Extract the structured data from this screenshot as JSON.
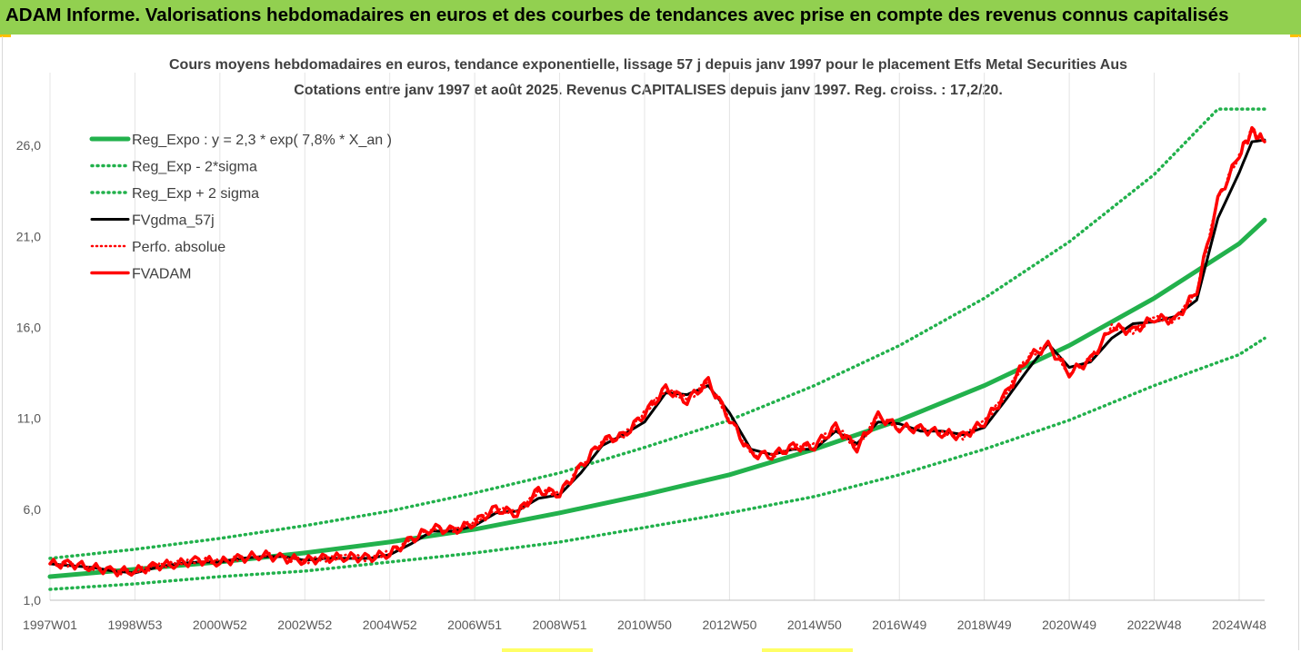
{
  "banner": {
    "title": "ADAM Informe. Valorisations hebdomadaires en euros et des courbes de tendances avec prise en compte des revenus connus capitalisés"
  },
  "colors": {
    "banner": "#92d050",
    "trend": "#22b14c",
    "smooth": "#000000",
    "absolute": "#ff0000",
    "adam": "#ff0000",
    "grid": "#e4e4e4"
  },
  "chart_data": {
    "type": "line",
    "title": "Cours moyens hebdomadaires en euros, tendance exponentielle, lissage 57 j depuis janv 1997 pour le placement Etfs Metal Securities Aus",
    "subtitle": "Cotations entre janv 1997 et août 2025. Revenus CAPITALISES depuis janv 1997. Reg. croiss. : 17,2/20.",
    "xlabel": "",
    "ylabel": "",
    "ylim": [
      1.0,
      30.0
    ],
    "x_range": [
      1997.0,
      2025.6
    ],
    "grid": true,
    "legend_position": "top-left",
    "x_ticks": [
      {
        "label": "1997W01",
        "year": 1997.0
      },
      {
        "label": "1998W53",
        "year": 1999.0
      },
      {
        "label": "2000W52",
        "year": 2001.0
      },
      {
        "label": "2002W52",
        "year": 2003.0
      },
      {
        "label": "2004W52",
        "year": 2005.0
      },
      {
        "label": "2006W51",
        "year": 2007.0
      },
      {
        "label": "2008W51",
        "year": 2009.0
      },
      {
        "label": "2010W50",
        "year": 2011.0
      },
      {
        "label": "2012W50",
        "year": 2013.0
      },
      {
        "label": "2014W50",
        "year": 2015.0
      },
      {
        "label": "2016W49",
        "year": 2017.0
      },
      {
        "label": "2018W49",
        "year": 2019.0
      },
      {
        "label": "2020W49",
        "year": 2021.0
      },
      {
        "label": "2022W48",
        "year": 2023.0
      },
      {
        "label": "2024W48",
        "year": 2025.0
      }
    ],
    "y_ticks": [
      "1,0",
      "6,0",
      "11,0",
      "16,0",
      "21,0",
      "26,0"
    ],
    "y_tick_values": [
      1.0,
      6.0,
      11.0,
      16.0,
      21.0,
      26.0
    ],
    "legend": [
      {
        "label": "Reg_Expo : y = 2,3 * exp( 7,8% *  X_an )",
        "style": "solid-green"
      },
      {
        "label": "Reg_Exp - 2*sigma",
        "style": "dotted-green"
      },
      {
        "label": "Reg_Exp + 2 sigma",
        "style": "dotted-green"
      },
      {
        "label": "FVgdma_57j",
        "style": "solid-black"
      },
      {
        "label": "Perfo. absolue",
        "style": "dotted-red"
      },
      {
        "label": "FVADAM",
        "style": "solid-red"
      }
    ],
    "series": [
      {
        "name": "Reg_Expo : y = 2,3 * exp( 7,8% *  X_an )",
        "x": [
          1997.0,
          1999.0,
          2001.0,
          2003.0,
          2005.0,
          2007.0,
          2009.0,
          2011.0,
          2013.0,
          2015.0,
          2017.0,
          2019.0,
          2021.0,
          2023.0,
          2025.0,
          2025.6
        ],
        "y": [
          2.3,
          2.7,
          3.1,
          3.6,
          4.2,
          4.9,
          5.8,
          6.8,
          7.9,
          9.3,
          10.9,
          12.8,
          15.0,
          17.6,
          20.6,
          21.9
        ]
      },
      {
        "name": "Reg_Exp - 2*sigma",
        "x": [
          1997.0,
          1999.0,
          2001.0,
          2003.0,
          2005.0,
          2007.0,
          2009.0,
          2011.0,
          2013.0,
          2015.0,
          2017.0,
          2019.0,
          2021.0,
          2023.0,
          2025.0,
          2025.6
        ],
        "y": [
          1.6,
          1.9,
          2.3,
          2.6,
          3.1,
          3.6,
          4.2,
          5.0,
          5.8,
          6.7,
          7.9,
          9.3,
          10.9,
          12.8,
          14.5,
          15.4
        ]
      },
      {
        "name": "Reg_Exp + 2 sigma",
        "x": [
          1997.0,
          1999.0,
          2001.0,
          2003.0,
          2005.0,
          2007.0,
          2009.0,
          2011.0,
          2013.0,
          2015.0,
          2017.0,
          2019.0,
          2021.0,
          2023.0,
          2024.5,
          2025.6
        ],
        "y": [
          3.3,
          3.8,
          4.4,
          5.1,
          5.9,
          6.9,
          8.0,
          9.4,
          10.9,
          12.8,
          15.0,
          17.6,
          20.7,
          24.4,
          28.0,
          28.0
        ]
      },
      {
        "name": "FVgdma_57j",
        "x": [
          1997.0,
          1997.5,
          1998.0,
          1998.5,
          1999.0,
          1999.5,
          2000.0,
          2000.5,
          2001.0,
          2001.5,
          2002.0,
          2002.5,
          2003.0,
          2003.5,
          2004.0,
          2004.5,
          2005.0,
          2005.5,
          2006.0,
          2006.5,
          2007.0,
          2007.5,
          2008.0,
          2008.5,
          2009.0,
          2009.5,
          2010.0,
          2010.5,
          2011.0,
          2011.5,
          2012.0,
          2012.5,
          2013.0,
          2013.5,
          2014.0,
          2014.5,
          2015.0,
          2015.5,
          2016.0,
          2016.5,
          2017.0,
          2017.5,
          2018.0,
          2018.5,
          2019.0,
          2019.5,
          2020.0,
          2020.5,
          2021.0,
          2021.5,
          2022.0,
          2022.5,
          2023.0,
          2023.5,
          2024.0,
          2024.5,
          2025.0,
          2025.3,
          2025.6
        ],
        "y": [
          3.0,
          2.9,
          2.8,
          2.6,
          2.5,
          2.8,
          3.0,
          3.1,
          3.1,
          3.3,
          3.4,
          3.4,
          3.2,
          3.3,
          3.3,
          3.3,
          3.5,
          4.1,
          4.8,
          4.8,
          5.1,
          5.8,
          5.9,
          6.6,
          6.8,
          8.0,
          9.5,
          10.1,
          10.8,
          12.4,
          12.3,
          12.8,
          11.3,
          9.3,
          9.0,
          9.3,
          9.3,
          10.3,
          9.6,
          10.8,
          10.7,
          10.3,
          10.3,
          10.1,
          10.5,
          12.0,
          13.6,
          15.1,
          13.8,
          14.1,
          15.4,
          16.2,
          16.3,
          16.6,
          17.5,
          22.0,
          24.5,
          26.2,
          26.3
        ]
      },
      {
        "name": "Perfo. absolue",
        "x": [
          1997.0,
          1997.5,
          1998.0,
          1998.5,
          1999.0,
          1999.5,
          2000.0,
          2000.5,
          2001.0,
          2001.5,
          2002.0,
          2002.5,
          2003.0,
          2003.5,
          2004.0,
          2004.5,
          2005.0,
          2005.5,
          2006.0,
          2006.5,
          2007.0,
          2007.5,
          2008.0,
          2008.5,
          2009.0,
          2009.5,
          2010.0,
          2010.5,
          2011.0,
          2011.5,
          2012.0,
          2012.5,
          2013.0,
          2013.5,
          2014.0,
          2014.5,
          2015.0,
          2015.5,
          2016.0,
          2016.5,
          2017.0,
          2017.5,
          2018.0,
          2018.5,
          2019.0,
          2019.5,
          2020.0,
          2020.5,
          2021.0,
          2021.5,
          2022.0,
          2022.5,
          2023.0,
          2023.5,
          2024.0,
          2024.5,
          2025.0,
          2025.3,
          2025.6
        ],
        "y": [
          3.0,
          3.0,
          2.8,
          2.6,
          2.6,
          2.9,
          3.0,
          3.2,
          3.1,
          3.3,
          3.5,
          3.3,
          3.2,
          3.3,
          3.4,
          3.3,
          3.6,
          4.3,
          5.0,
          4.8,
          5.3,
          6.0,
          5.8,
          7.0,
          6.9,
          8.3,
          9.8,
          10.0,
          11.3,
          12.6,
          12.0,
          13.0,
          11.0,
          9.0,
          9.0,
          9.4,
          9.5,
          10.5,
          9.4,
          11.1,
          10.5,
          10.4,
          10.2,
          10.0,
          10.8,
          12.3,
          14.3,
          15.0,
          13.5,
          14.2,
          16.0,
          15.8,
          16.5,
          16.4,
          18.0,
          23.0,
          25.5,
          26.8,
          26.2
        ]
      },
      {
        "name": "FVADAM",
        "x": [
          1997.0,
          1997.5,
          1998.0,
          1998.5,
          1999.0,
          1999.5,
          2000.0,
          2000.5,
          2001.0,
          2001.5,
          2002.0,
          2002.5,
          2003.0,
          2003.5,
          2004.0,
          2004.5,
          2005.0,
          2005.5,
          2006.0,
          2006.5,
          2007.0,
          2007.5,
          2008.0,
          2008.5,
          2009.0,
          2009.5,
          2010.0,
          2010.5,
          2011.0,
          2011.5,
          2012.0,
          2012.5,
          2013.0,
          2013.5,
          2014.0,
          2014.5,
          2015.0,
          2015.5,
          2016.0,
          2016.5,
          2017.0,
          2017.5,
          2018.0,
          2018.5,
          2019.0,
          2019.5,
          2020.0,
          2020.5,
          2021.0,
          2021.5,
          2022.0,
          2022.5,
          2023.0,
          2023.5,
          2024.0,
          2024.5,
          2025.0,
          2025.3,
          2025.6
        ],
        "y": [
          3.0,
          3.0,
          2.8,
          2.6,
          2.6,
          2.9,
          3.0,
          3.2,
          3.1,
          3.3,
          3.5,
          3.3,
          3.2,
          3.3,
          3.4,
          3.3,
          3.6,
          4.3,
          5.0,
          4.8,
          5.3,
          6.0,
          5.8,
          7.0,
          6.9,
          8.3,
          9.8,
          10.0,
          11.3,
          12.6,
          12.0,
          13.0,
          11.0,
          9.0,
          9.0,
          9.4,
          9.5,
          10.5,
          9.4,
          11.1,
          10.5,
          10.4,
          10.2,
          10.0,
          10.8,
          12.3,
          14.3,
          15.0,
          13.5,
          14.2,
          16.0,
          15.8,
          16.5,
          16.4,
          18.0,
          23.0,
          25.5,
          26.8,
          26.2
        ]
      }
    ]
  }
}
